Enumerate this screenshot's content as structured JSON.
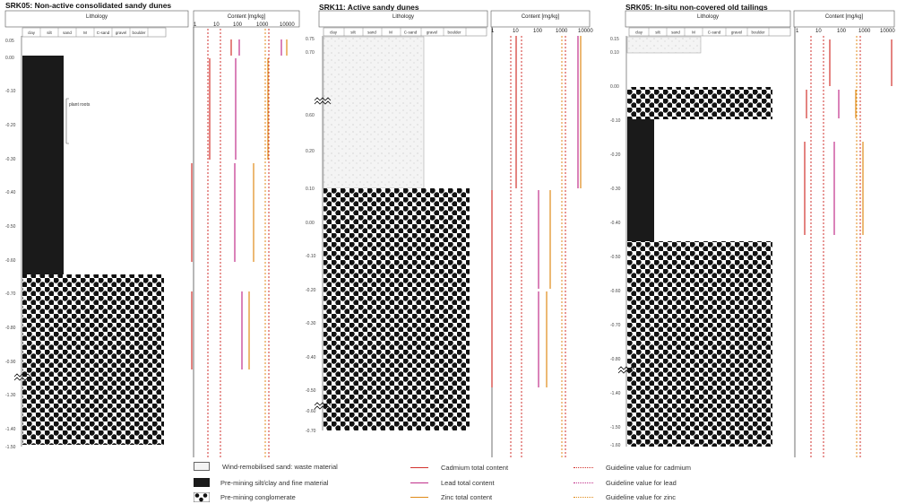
{
  "colors": {
    "cadmium": "#d2322d",
    "lead": "#c0308a",
    "zinc": "#e08a18",
    "fines": "#1a1a1a"
  },
  "panels": [
    {
      "id": "SRK05-left",
      "title": "SRK05: Non-active consolidated sandy dunes",
      "lithology_header": "Lithology",
      "content_header": "Content [mg/kg]",
      "grain_headers": [
        "clay",
        "silt",
        "f",
        "sand",
        "M",
        "sand",
        "C-sand",
        "gravel",
        "boulder"
      ],
      "content_ticks": [
        "1",
        "10",
        "100",
        "1000",
        "10000"
      ],
      "depth_ticks": [
        "0.05",
        "0.00",
        "-0.10",
        "-0.20",
        "-0.30",
        "-0.40",
        "-0.50",
        "-0.60",
        "-0.70",
        "-0.80",
        "-0.90",
        "-1.30",
        "-1.40",
        "-1.50"
      ],
      "annotation": "plant roots"
    },
    {
      "id": "SRK11",
      "title": "SRK11: Active sandy dunes",
      "lithology_header": "Lithology",
      "content_header": "Content [mg/kg]",
      "grain_headers": [
        "clay",
        "silt",
        "f",
        "sand",
        "M",
        "sand",
        "C-sand",
        "gravel",
        "boulder"
      ],
      "content_ticks": [
        "1",
        "10",
        "100",
        "1000",
        "10000"
      ],
      "depth_ticks": [
        "0.75",
        "0.70",
        "0.60",
        "0.20",
        "0.10",
        "0.00",
        "-0.10",
        "-0.20",
        "-0.30",
        "-0.40",
        "-0.50",
        "-0.60",
        "-0.70"
      ]
    },
    {
      "id": "SRK05-right",
      "title": "SRK05: In-situ non-covered old tailings",
      "lithology_header": "Lithology",
      "content_header": "Content [mg/kg]",
      "grain_headers": [
        "clay",
        "silt",
        "f",
        "sand",
        "M",
        "sand",
        "C-sand",
        "gravel",
        "boulder"
      ],
      "content_ticks": [
        "1",
        "10",
        "100",
        "1000",
        "10000"
      ],
      "depth_ticks": [
        "0.15",
        "0.10",
        "0.00",
        "-0.10",
        "-0.20",
        "-0.30",
        "-0.40",
        "-0.50",
        "-0.60",
        "-0.70",
        "-0.80",
        "-1.40",
        "-1.50",
        "-1.60"
      ]
    }
  ],
  "legend": {
    "lithology": [
      {
        "label": "Wind-remobilised sand: waste material"
      },
      {
        "label": "Pre-mining silt/clay and fine material"
      },
      {
        "label": "Pre-mining conglomerate"
      }
    ],
    "series": [
      {
        "label": "Cadmium total content",
        "style": "solid",
        "color": "#d2322d"
      },
      {
        "label": "Lead total content",
        "style": "solid",
        "color": "#c0308a"
      },
      {
        "label": "Zinc total content",
        "style": "solid",
        "color": "#e08a18"
      }
    ],
    "guidelines": [
      {
        "label": "Guideline value for cadmium",
        "color": "#d2322d"
      },
      {
        "label": "Guideline value for lead",
        "color": "#c0308a"
      },
      {
        "label": "Guideline value for zinc",
        "color": "#e08a18"
      }
    ]
  }
}
